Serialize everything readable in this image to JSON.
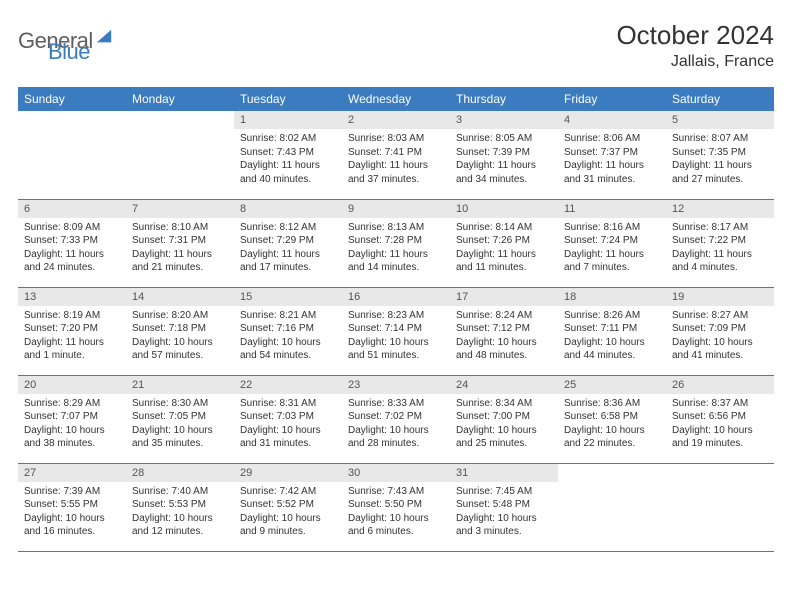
{
  "brand": {
    "part1": "General",
    "part2": "Blue"
  },
  "title": "October 2024",
  "location": "Jallais, France",
  "colors": {
    "header_bg": "#3b7bbf",
    "header_fg": "#ffffff",
    "daynum_bg": "#e8e8e8",
    "row_border": "#3b7bbf",
    "text": "#333333",
    "logo_gray": "#5f5f5f",
    "logo_blue": "#3b7bbf"
  },
  "day_headers": [
    "Sunday",
    "Monday",
    "Tuesday",
    "Wednesday",
    "Thursday",
    "Friday",
    "Saturday"
  ],
  "weeks": [
    [
      {
        "empty": true
      },
      {
        "empty": true
      },
      {
        "num": "1",
        "sunrise": "8:02 AM",
        "sunset": "7:43 PM",
        "daylight": "11 hours and 40 minutes."
      },
      {
        "num": "2",
        "sunrise": "8:03 AM",
        "sunset": "7:41 PM",
        "daylight": "11 hours and 37 minutes."
      },
      {
        "num": "3",
        "sunrise": "8:05 AM",
        "sunset": "7:39 PM",
        "daylight": "11 hours and 34 minutes."
      },
      {
        "num": "4",
        "sunrise": "8:06 AM",
        "sunset": "7:37 PM",
        "daylight": "11 hours and 31 minutes."
      },
      {
        "num": "5",
        "sunrise": "8:07 AM",
        "sunset": "7:35 PM",
        "daylight": "11 hours and 27 minutes."
      }
    ],
    [
      {
        "num": "6",
        "sunrise": "8:09 AM",
        "sunset": "7:33 PM",
        "daylight": "11 hours and 24 minutes."
      },
      {
        "num": "7",
        "sunrise": "8:10 AM",
        "sunset": "7:31 PM",
        "daylight": "11 hours and 21 minutes."
      },
      {
        "num": "8",
        "sunrise": "8:12 AM",
        "sunset": "7:29 PM",
        "daylight": "11 hours and 17 minutes."
      },
      {
        "num": "9",
        "sunrise": "8:13 AM",
        "sunset": "7:28 PM",
        "daylight": "11 hours and 14 minutes."
      },
      {
        "num": "10",
        "sunrise": "8:14 AM",
        "sunset": "7:26 PM",
        "daylight": "11 hours and 11 minutes."
      },
      {
        "num": "11",
        "sunrise": "8:16 AM",
        "sunset": "7:24 PM",
        "daylight": "11 hours and 7 minutes."
      },
      {
        "num": "12",
        "sunrise": "8:17 AM",
        "sunset": "7:22 PM",
        "daylight": "11 hours and 4 minutes."
      }
    ],
    [
      {
        "num": "13",
        "sunrise": "8:19 AM",
        "sunset": "7:20 PM",
        "daylight": "11 hours and 1 minute."
      },
      {
        "num": "14",
        "sunrise": "8:20 AM",
        "sunset": "7:18 PM",
        "daylight": "10 hours and 57 minutes."
      },
      {
        "num": "15",
        "sunrise": "8:21 AM",
        "sunset": "7:16 PM",
        "daylight": "10 hours and 54 minutes."
      },
      {
        "num": "16",
        "sunrise": "8:23 AM",
        "sunset": "7:14 PM",
        "daylight": "10 hours and 51 minutes."
      },
      {
        "num": "17",
        "sunrise": "8:24 AM",
        "sunset": "7:12 PM",
        "daylight": "10 hours and 48 minutes."
      },
      {
        "num": "18",
        "sunrise": "8:26 AM",
        "sunset": "7:11 PM",
        "daylight": "10 hours and 44 minutes."
      },
      {
        "num": "19",
        "sunrise": "8:27 AM",
        "sunset": "7:09 PM",
        "daylight": "10 hours and 41 minutes."
      }
    ],
    [
      {
        "num": "20",
        "sunrise": "8:29 AM",
        "sunset": "7:07 PM",
        "daylight": "10 hours and 38 minutes."
      },
      {
        "num": "21",
        "sunrise": "8:30 AM",
        "sunset": "7:05 PM",
        "daylight": "10 hours and 35 minutes."
      },
      {
        "num": "22",
        "sunrise": "8:31 AM",
        "sunset": "7:03 PM",
        "daylight": "10 hours and 31 minutes."
      },
      {
        "num": "23",
        "sunrise": "8:33 AM",
        "sunset": "7:02 PM",
        "daylight": "10 hours and 28 minutes."
      },
      {
        "num": "24",
        "sunrise": "8:34 AM",
        "sunset": "7:00 PM",
        "daylight": "10 hours and 25 minutes."
      },
      {
        "num": "25",
        "sunrise": "8:36 AM",
        "sunset": "6:58 PM",
        "daylight": "10 hours and 22 minutes."
      },
      {
        "num": "26",
        "sunrise": "8:37 AM",
        "sunset": "6:56 PM",
        "daylight": "10 hours and 19 minutes."
      }
    ],
    [
      {
        "num": "27",
        "sunrise": "7:39 AM",
        "sunset": "5:55 PM",
        "daylight": "10 hours and 16 minutes."
      },
      {
        "num": "28",
        "sunrise": "7:40 AM",
        "sunset": "5:53 PM",
        "daylight": "10 hours and 12 minutes."
      },
      {
        "num": "29",
        "sunrise": "7:42 AM",
        "sunset": "5:52 PM",
        "daylight": "10 hours and 9 minutes."
      },
      {
        "num": "30",
        "sunrise": "7:43 AM",
        "sunset": "5:50 PM",
        "daylight": "10 hours and 6 minutes."
      },
      {
        "num": "31",
        "sunrise": "7:45 AM",
        "sunset": "5:48 PM",
        "daylight": "10 hours and 3 minutes."
      },
      {
        "empty": true
      },
      {
        "empty": true
      }
    ]
  ],
  "labels": {
    "sunrise": "Sunrise: ",
    "sunset": "Sunset: ",
    "daylight": "Daylight: "
  }
}
